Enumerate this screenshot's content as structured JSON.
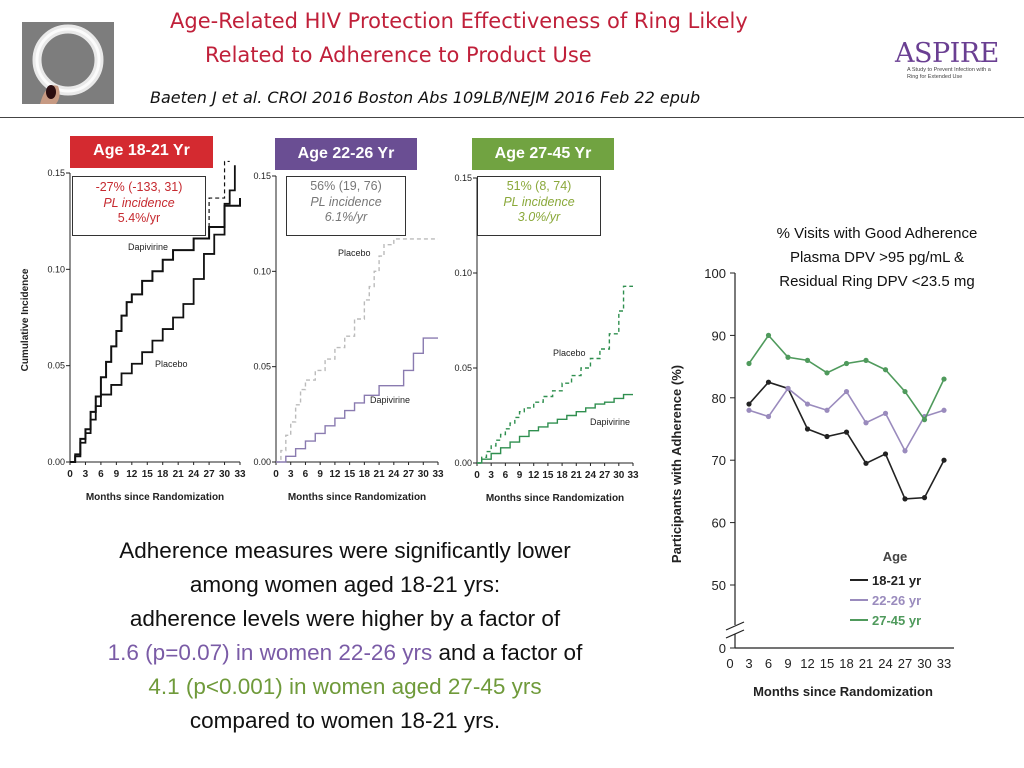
{
  "header": {
    "title_line1": "Age-Related HIV Protection Effectiveness of Ring  Likely",
    "title_line2": "Related to Adherence to Product Use",
    "citation": "Baeten J et al. CROI 2016 Boston Abs 109LB/NEJM 2016 Feb 22 epub",
    "logo_text": "ASPIRE",
    "logo_tagline": "A Study to Prevent Infection with a Ring for Extended Use"
  },
  "colors": {
    "title": "#c0203a",
    "age_18_21": "#d42a30",
    "age_22_26": "#6a4e93",
    "age_27_45": "#71a341"
  },
  "panels": [
    {
      "age_label": "Age 18-21 Yr",
      "stat_line1": "-27% (-133, 31)",
      "stat_line2": "PL incidence",
      "stat_line3": "5.4%/yr"
    },
    {
      "age_label": "Age 22-26 Yr",
      "stat_line1": "56% (19, 76)",
      "stat_line2": "PL incidence",
      "stat_line3": "6.1%/yr"
    },
    {
      "age_label": "Age 27-45 Yr",
      "stat_line1": "51% (8, 74)",
      "stat_line2": "PL incidence",
      "stat_line3": "3.0%/yr"
    }
  ],
  "visits_note": {
    "line1": "% Visits with Good Adherence",
    "line2": "Plasma DPV >95 pg/mL &",
    "line3": "Residual Ring DPV <23.5 mg"
  },
  "summary": {
    "line1": "Adherence measures were significantly lower",
    "line2": "among women aged 18-21 yrs:",
    "line3": "adherence levels were higher by a factor of",
    "line4_colored": "1.6 (p=0.07) in women 22-26 yrs",
    "line4_rest": " and a factor of",
    "line5_colored": "4.1 (p<0.001) in women aged 27-45 yrs",
    "line6": "compared to women 18-21 yrs."
  },
  "chart_data": [
    {
      "type": "line",
      "title": "Age 18-21 Yr",
      "xlabel": "Months since Randomization",
      "ylabel": "Cumulative Incidence",
      "x_ticks": [
        0,
        3,
        6,
        9,
        12,
        15,
        18,
        21,
        24,
        27,
        30,
        33
      ],
      "y_ticks": [
        "0.00",
        "0.05",
        "0.10",
        "0.15"
      ],
      "xlim": [
        0,
        33
      ],
      "ylim": [
        0,
        0.15
      ],
      "series": [
        {
          "name": "Dapivirine",
          "style": "solid",
          "points": [
            [
              0,
              0
            ],
            [
              1,
              0.003
            ],
            [
              2,
              0.012
            ],
            [
              3,
              0.017
            ],
            [
              4,
              0.026
            ],
            [
              5,
              0.034
            ],
            [
              6,
              0.044
            ],
            [
              7,
              0.052
            ],
            [
              8,
              0.06
            ],
            [
              9,
              0.068
            ],
            [
              10,
              0.076
            ],
            [
              11,
              0.083
            ],
            [
              12,
              0.087
            ],
            [
              14,
              0.094
            ],
            [
              16,
              0.099
            ],
            [
              18,
              0.105
            ],
            [
              20,
              0.11
            ],
            [
              24,
              0.116
            ],
            [
              27,
              0.122
            ],
            [
              30,
              0.133
            ],
            [
              33,
              0.137
            ]
          ]
        },
        {
          "name": "Placebo",
          "style": "solid",
          "points": [
            [
              0,
              0
            ],
            [
              1,
              0.004
            ],
            [
              2,
              0.01
            ],
            [
              3,
              0.015
            ],
            [
              4,
              0.022
            ],
            [
              5,
              0.029
            ],
            [
              6,
              0.035
            ],
            [
              8,
              0.04
            ],
            [
              10,
              0.046
            ],
            [
              12,
              0.051
            ],
            [
              14,
              0.057
            ],
            [
              16,
              0.063
            ],
            [
              18,
              0.069
            ],
            [
              20,
              0.075
            ],
            [
              22,
              0.082
            ],
            [
              24,
              0.095
            ],
            [
              26,
              0.108
            ],
            [
              28,
              0.118
            ],
            [
              30,
              0.134
            ],
            [
              31,
              0.141
            ],
            [
              32,
              0.154
            ]
          ]
        }
      ]
    },
    {
      "type": "line",
      "title": "Age 22-26 Yr",
      "xlabel": "Months since Randomization",
      "ylabel": "",
      "x_ticks": [
        0,
        3,
        6,
        9,
        12,
        15,
        18,
        21,
        24,
        27,
        30,
        33
      ],
      "y_ticks": [
        "0.00",
        "0.05",
        "0.10",
        "0.15"
      ],
      "xlim": [
        0,
        33
      ],
      "ylim": [
        0,
        0.15
      ],
      "series": [
        {
          "name": "Placebo",
          "style": "dashed",
          "points": [
            [
              0,
              0
            ],
            [
              1,
              0.006
            ],
            [
              2,
              0.014
            ],
            [
              3,
              0.021
            ],
            [
              4,
              0.03
            ],
            [
              5,
              0.038
            ],
            [
              6,
              0.043
            ],
            [
              8,
              0.048
            ],
            [
              10,
              0.054
            ],
            [
              12,
              0.06
            ],
            [
              14,
              0.066
            ],
            [
              16,
              0.075
            ],
            [
              18,
              0.085
            ],
            [
              19,
              0.092
            ],
            [
              20,
              0.1
            ],
            [
              21,
              0.108
            ],
            [
              22,
              0.114
            ],
            [
              24,
              0.117
            ],
            [
              33,
              0.117
            ]
          ]
        },
        {
          "name": "Dapivirine",
          "style": "solid",
          "points": [
            [
              0,
              0
            ],
            [
              2,
              0.003
            ],
            [
              4,
              0.007
            ],
            [
              6,
              0.011
            ],
            [
              8,
              0.015
            ],
            [
              10,
              0.019
            ],
            [
              12,
              0.023
            ],
            [
              14,
              0.027
            ],
            [
              16,
              0.031
            ],
            [
              18,
              0.035
            ],
            [
              21,
              0.04
            ],
            [
              24,
              0.04
            ],
            [
              26,
              0.048
            ],
            [
              28,
              0.057
            ],
            [
              30,
              0.065
            ],
            [
              33,
              0.065
            ]
          ]
        }
      ]
    },
    {
      "type": "line",
      "title": "Age 27-45 Yr",
      "xlabel": "Months since Randomization",
      "ylabel": "",
      "x_ticks": [
        0,
        3,
        6,
        9,
        12,
        15,
        18,
        21,
        24,
        27,
        30,
        33
      ],
      "y_ticks": [
        "0.00",
        "0.05",
        "0.10",
        "0.15"
      ],
      "xlim": [
        0,
        33
      ],
      "ylim": [
        0,
        0.15
      ],
      "series": [
        {
          "name": "Placebo",
          "style": "dashed",
          "points": [
            [
              0,
              0
            ],
            [
              1,
              0.003
            ],
            [
              2,
              0.006
            ],
            [
              3,
              0.009
            ],
            [
              4,
              0.012
            ],
            [
              5,
              0.015
            ],
            [
              6,
              0.018
            ],
            [
              7,
              0.021
            ],
            [
              8,
              0.024
            ],
            [
              9,
              0.027
            ],
            [
              10,
              0.029
            ],
            [
              12,
              0.032
            ],
            [
              14,
              0.035
            ],
            [
              16,
              0.038
            ],
            [
              18,
              0.042
            ],
            [
              20,
              0.046
            ],
            [
              22,
              0.05
            ],
            [
              24,
              0.055
            ],
            [
              26,
              0.06
            ],
            [
              28,
              0.068
            ],
            [
              30,
              0.08
            ],
            [
              31,
              0.093
            ],
            [
              33,
              0.093
            ]
          ]
        },
        {
          "name": "Dapivirine",
          "style": "solid",
          "points": [
            [
              0,
              0
            ],
            [
              1,
              0.002
            ],
            [
              3,
              0.005
            ],
            [
              5,
              0.008
            ],
            [
              7,
              0.011
            ],
            [
              9,
              0.014
            ],
            [
              11,
              0.017
            ],
            [
              13,
              0.019
            ],
            [
              15,
              0.021
            ],
            [
              17,
              0.023
            ],
            [
              19,
              0.025
            ],
            [
              21,
              0.027
            ],
            [
              23,
              0.029
            ],
            [
              25,
              0.031
            ],
            [
              27,
              0.032
            ],
            [
              29,
              0.034
            ],
            [
              31,
              0.036
            ],
            [
              33,
              0.036
            ]
          ]
        }
      ]
    },
    {
      "type": "line",
      "title": "% Visits with Good Adherence",
      "xlabel": "Months since Randomization",
      "ylabel": "Participants with Adherence (%)",
      "x": [
        3,
        6,
        9,
        12,
        15,
        18,
        21,
        24,
        27,
        30,
        33
      ],
      "y_ticks": [
        0,
        50,
        60,
        70,
        80,
        90,
        100
      ],
      "ylim": [
        0,
        100
      ],
      "axis_break": true,
      "legend_title": "Age",
      "series": [
        {
          "name": "18-21 yr",
          "color": "#222222",
          "values": [
            79,
            82.5,
            81.5,
            75,
            73.8,
            74.5,
            69.5,
            71,
            63.8,
            64,
            70
          ]
        },
        {
          "name": "22-26 yr",
          "color": "#9a8bbd",
          "values": [
            78,
            77,
            81.5,
            79,
            78,
            81,
            76,
            77.5,
            71.5,
            77,
            78
          ]
        },
        {
          "name": "27-45 yr",
          "color": "#4f9a5c",
          "values": [
            85.5,
            90,
            86.5,
            86,
            84,
            85.5,
            86,
            84.5,
            81,
            76.5,
            83
          ]
        }
      ]
    }
  ]
}
